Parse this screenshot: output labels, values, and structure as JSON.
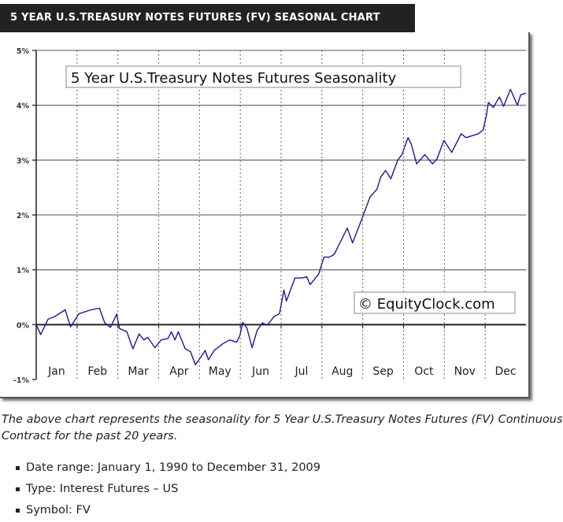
{
  "banner": {
    "title": "5 YEAR U.S.TREASURY NOTES FUTURES (FV) SEASONAL CHART"
  },
  "chart_data": {
    "type": "line",
    "title": "5 Year U.S.Treasury Notes Futures Seasonality",
    "watermark": "© EquityClock.com",
    "xlabel": "",
    "ylabel": "",
    "ylim": [
      -1,
      5
    ],
    "y_ticks": [
      "-1%",
      "0%",
      "1%",
      "2%",
      "3%",
      "4%",
      "5%"
    ],
    "x_ticks": [
      "Jan",
      "Feb",
      "Mar",
      "Apr",
      "May",
      "Jun",
      "Jul",
      "Aug",
      "Sep",
      "Oct",
      "Nov",
      "Dec"
    ],
    "grid": {
      "horizontal": "solid",
      "vertical": "dotted"
    },
    "line_color": "#1a1a99",
    "series": [
      {
        "x_month_position": [
          0,
          0.11,
          0.29,
          0.46,
          0.71,
          0.84,
          1.05,
          1.34,
          1.55,
          1.68,
          1.82,
          1.97,
          2.04,
          2.22,
          2.37,
          2.52,
          2.64,
          2.73,
          2.91,
          3.06,
          3.23,
          3.31,
          3.4,
          3.48,
          3.65,
          3.78,
          3.9,
          3.99,
          4.14,
          4.22,
          4.36,
          4.57,
          4.74,
          4.91,
          4.99,
          5.06,
          5.16,
          5.29,
          5.41,
          5.54,
          5.66,
          5.83,
          5.96,
          6.07,
          6.13,
          6.34,
          6.51,
          6.63,
          6.71,
          6.92,
          7.05,
          7.18,
          7.3,
          7.62,
          7.75,
          7.93,
          8.06,
          8.18,
          8.35,
          8.44,
          8.56,
          8.69,
          8.86,
          8.96,
          9.11,
          9.19,
          9.32,
          9.52,
          9.71,
          9.82,
          9.99,
          10.18,
          10.41,
          10.53,
          10.83,
          10.95,
          11.03,
          11.08,
          11.2,
          11.35,
          11.45,
          11.62,
          11.79,
          11.87,
          12
        ],
        "values": [
          0,
          -0.18,
          0.1,
          0.15,
          0.27,
          -0.04,
          0.2,
          0.27,
          0.3,
          0.03,
          -0.05,
          0.19,
          -0.07,
          -0.13,
          -0.44,
          -0.17,
          -0.28,
          -0.23,
          -0.42,
          -0.28,
          -0.25,
          -0.13,
          -0.28,
          -0.13,
          -0.44,
          -0.49,
          -0.73,
          -0.64,
          -0.47,
          -0.64,
          -0.47,
          -0.35,
          -0.28,
          -0.32,
          -0.2,
          0.04,
          -0.06,
          -0.42,
          -0.11,
          0.03,
          -0.01,
          0.15,
          0.2,
          0.63,
          0.43,
          0.85,
          0.85,
          0.87,
          0.73,
          0.92,
          1.23,
          1.23,
          1.28,
          1.76,
          1.49,
          1.83,
          2.09,
          2.33,
          2.47,
          2.69,
          2.81,
          2.66,
          3.0,
          3.1,
          3.41,
          3.29,
          2.93,
          3.1,
          2.93,
          3.02,
          3.36,
          3.14,
          3.48,
          3.41,
          3.48,
          3.55,
          3.81,
          4.05,
          3.96,
          4.15,
          3.98,
          4.29,
          4.0,
          4.19,
          4.22
        ]
      }
    ]
  },
  "description": {
    "line1": "The above chart represents the seasonality for 5 Year U.S.Treasury Notes Futures (FV) Continuous",
    "line2": "Contract for the past 20 years."
  },
  "details": [
    "Date range: January 1, 1990 to December 31, 2009",
    "Type: Interest Futures – US",
    "Symbol: FV"
  ]
}
